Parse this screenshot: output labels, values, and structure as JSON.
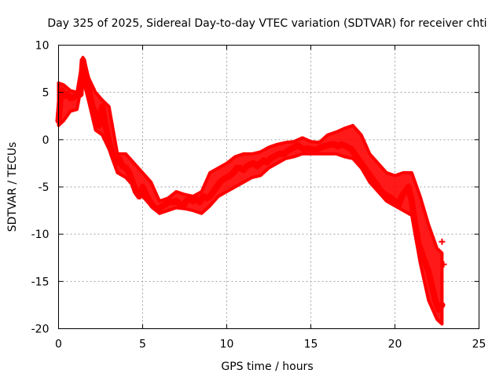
{
  "chart_data": {
    "type": "scatter",
    "title": "Day 325 of 2025, Sidereal Day-to-day VTEC variation (SDTVAR) for receiver chti",
    "xlabel": "GPS time / hours",
    "ylabel": "SDTVAR / TECUs",
    "xlim": [
      0,
      25
    ],
    "ylim": [
      -20,
      10
    ],
    "xticks": [
      0,
      5,
      10,
      15,
      20,
      25
    ],
    "yticks": [
      -20,
      -15,
      -10,
      -5,
      0,
      5,
      10
    ],
    "xtick_labels": [
      "0",
      "5",
      "10",
      "15",
      "20",
      "25"
    ],
    "ytick_labels": [
      "-20",
      "-15",
      "-10",
      "-5",
      "0",
      "5",
      "10"
    ],
    "grid": true,
    "legend": "none",
    "marker": "+",
    "color": "#ff0000",
    "series": [
      {
        "name": "SDTVAR",
        "x": [
          0.0,
          0.1,
          0.2,
          0.3,
          0.5,
          0.7,
          0.9,
          1.1,
          1.3,
          1.45,
          1.6,
          1.8,
          2.0,
          2.2,
          2.4,
          2.6,
          2.8,
          3.0,
          3.2,
          3.4,
          3.6,
          3.8,
          4.0,
          4.2,
          4.4,
          4.6,
          4.8,
          5.0,
          5.2,
          5.4,
          5.6,
          5.8,
          6.0,
          6.2,
          6.4,
          6.6,
          6.8,
          7.0,
          7.2,
          7.4,
          7.6,
          7.8,
          8.0,
          8.2,
          8.4,
          8.6,
          8.8,
          9.0,
          9.2,
          9.4,
          9.6,
          9.8,
          10.0,
          10.2,
          10.4,
          10.6,
          10.8,
          11.0,
          11.2,
          11.4,
          11.6,
          11.8,
          12.0,
          12.2,
          12.4,
          12.6,
          12.8,
          13.0,
          13.2,
          13.4,
          13.6,
          13.8,
          14.0,
          14.2,
          14.4,
          14.6,
          14.8,
          15.0,
          15.2,
          15.4,
          15.6,
          15.8,
          16.0,
          16.2,
          16.4,
          16.6,
          16.8,
          17.0,
          17.2,
          17.4,
          17.6,
          17.8,
          18.0,
          18.2,
          18.4,
          18.6,
          18.8,
          19.0,
          19.2,
          19.4,
          19.6,
          19.8,
          20.0,
          20.2,
          20.4,
          20.6,
          20.8,
          21.0,
          21.2,
          21.4,
          21.6,
          21.8,
          22.0,
          22.2,
          22.4,
          22.6,
          22.8
        ],
        "y": [
          2.0,
          4.2,
          5.2,
          4.6,
          4.8,
          4.4,
          4.5,
          4.7,
          4.8,
          8.4,
          7.2,
          5.5,
          3.5,
          2.8,
          1.5,
          3.5,
          1.5,
          -0.2,
          -1.5,
          -2.5,
          -2.0,
          -2.8,
          -3.0,
          -3.5,
          -4.5,
          -5.5,
          -6.0,
          -5.0,
          -5.8,
          -6.5,
          -7.0,
          -7.3,
          -7.3,
          -7.0,
          -6.8,
          -6.5,
          -6.6,
          -6.5,
          -6.8,
          -7.0,
          -6.5,
          -6.2,
          -6.5,
          -6.3,
          -6.6,
          -6.0,
          -6.2,
          -6.0,
          -5.5,
          -5.0,
          -4.5,
          -4.2,
          -4.0,
          -3.8,
          -3.5,
          -3.0,
          -3.0,
          -3.2,
          -2.8,
          -2.6,
          -2.5,
          -2.8,
          -2.5,
          -2.2,
          -2.4,
          -2.0,
          -1.8,
          -1.6,
          -1.5,
          -1.5,
          -1.2,
          -1.0,
          -0.8,
          -0.6,
          -0.8,
          -1.0,
          -0.9,
          -1.0,
          -1.1,
          -1.0,
          -0.8,
          -0.7,
          -0.6,
          -0.5,
          -0.5,
          -0.7,
          -0.5,
          -0.6,
          -0.8,
          -1.0,
          -1.5,
          -2.0,
          -2.5,
          -3.0,
          -3.5,
          -4.0,
          -4.5,
          -5.0,
          -5.5,
          -5.8,
          -6.0,
          -6.2,
          -6.5,
          -7.0,
          -6.0,
          -5.5,
          -5.0,
          -6.5,
          -9.0,
          -11.0,
          -12.0,
          -13.0,
          -14.0,
          -15.5,
          -17.0,
          -18.0,
          -17.5
        ]
      }
    ],
    "bands": {
      "x": [
        0.0,
        0.3,
        0.7,
        1.1,
        1.45,
        1.8,
        2.2,
        2.6,
        3.0,
        3.5,
        4.0,
        4.5,
        5.0,
        5.5,
        6.0,
        6.5,
        7.0,
        7.5,
        8.0,
        8.5,
        9.0,
        9.5,
        10.0,
        10.5,
        11.0,
        11.5,
        12.0,
        12.5,
        13.0,
        13.5,
        14.0,
        14.5,
        15.0,
        15.5,
        16.0,
        16.5,
        17.0,
        17.5,
        18.0,
        18.5,
        19.0,
        19.5,
        20.0,
        20.5,
        21.0,
        21.5,
        22.0,
        22.5,
        22.8
      ],
      "y_high": [
        6.0,
        5.8,
        5.2,
        5.0,
        8.7,
        6.5,
        5.0,
        4.2,
        3.5,
        -1.5,
        -1.5,
        -2.5,
        -3.5,
        -4.5,
        -6.5,
        -6.2,
        -5.5,
        -5.8,
        -6.0,
        -5.5,
        -3.5,
        -3.0,
        -2.5,
        -1.8,
        -1.5,
        -1.5,
        -1.3,
        -0.8,
        -0.5,
        -0.3,
        -0.2,
        0.2,
        -0.2,
        -0.3,
        0.5,
        0.8,
        1.2,
        1.5,
        0.5,
        -1.5,
        -2.5,
        -3.5,
        -3.8,
        -3.5,
        -3.5,
        -6.0,
        -9.0,
        -11.5,
        -12.0
      ],
      "y_low": [
        1.5,
        2.0,
        3.0,
        3.2,
        6.5,
        4.0,
        1.0,
        0.5,
        -1.0,
        -3.5,
        -4.0,
        -5.0,
        -6.0,
        -7.0,
        -7.8,
        -7.5,
        -7.2,
        -7.3,
        -7.5,
        -7.8,
        -7.0,
        -6.0,
        -5.5,
        -5.0,
        -4.5,
        -4.0,
        -3.8,
        -3.0,
        -2.5,
        -2.0,
        -1.8,
        -1.5,
        -1.5,
        -1.5,
        -1.5,
        -1.5,
        -1.8,
        -2.0,
        -3.0,
        -4.5,
        -5.5,
        -6.5,
        -7.0,
        -7.5,
        -8.0,
        -13.0,
        -17.0,
        -19.0,
        -19.5
      ]
    },
    "isolated_points": [
      {
        "x": 22.8,
        "y": -10.8
      },
      {
        "x": 22.9,
        "y": -13.2
      }
    ]
  }
}
